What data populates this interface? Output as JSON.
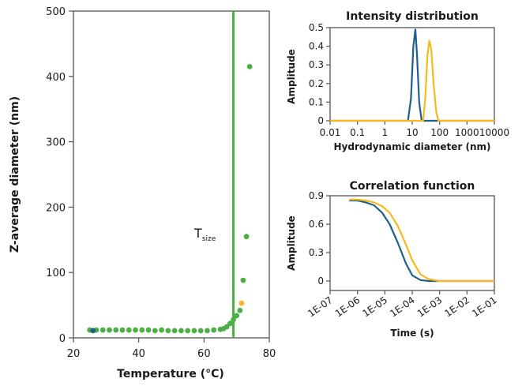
{
  "colors": {
    "green": "#4caf43",
    "blue": "#1f5f8b",
    "yellow": "#f8b91f",
    "axis": "#555555"
  },
  "chart_data": [
    {
      "id": "main",
      "type": "scatter",
      "xlabel": "Temperature (°C)",
      "ylabel": "Z-average diameter (nm)",
      "xlim": [
        20,
        80
      ],
      "ylim": [
        0,
        500
      ],
      "xticks": [
        "20",
        "40",
        "60",
        "80"
      ],
      "yticks": [
        "0",
        "100",
        "200",
        "300",
        "400",
        "500"
      ],
      "annotation": {
        "label": "T",
        "subscript": "size",
        "x_value": 69
      },
      "series": [
        {
          "color": "green",
          "points": [
            [
              25,
              12
            ],
            [
              27,
              12
            ],
            [
              29,
              12
            ],
            [
              31,
              12
            ],
            [
              33,
              12
            ],
            [
              35,
              12
            ],
            [
              37,
              12
            ],
            [
              39,
              12
            ],
            [
              41,
              12
            ],
            [
              43,
              12
            ],
            [
              45,
              11
            ],
            [
              47,
              12
            ],
            [
              49,
              11
            ],
            [
              51,
              11
            ],
            [
              53,
              11
            ],
            [
              55,
              11
            ],
            [
              57,
              11
            ],
            [
              59,
              11
            ],
            [
              61,
              11
            ],
            [
              63,
              12
            ],
            [
              65,
              13
            ],
            [
              66,
              14
            ],
            [
              67,
              17
            ],
            [
              68,
              22
            ],
            [
              69,
              28
            ],
            [
              70,
              34
            ],
            [
              71,
              42
            ],
            [
              72,
              88
            ],
            [
              73,
              155
            ],
            [
              74,
              415
            ]
          ]
        },
        {
          "color": "blue",
          "points": [
            [
              26,
              11
            ]
          ]
        },
        {
          "color": "yellow",
          "points": [
            [
              71.5,
              53
            ]
          ]
        }
      ]
    },
    {
      "id": "intensity",
      "type": "line",
      "title": "Intensity distribution",
      "xlabel": "Hydrodynamic diameter (nm)",
      "ylabel": "Amplitude",
      "x_scale": "log",
      "xlim": [
        0.01,
        10000
      ],
      "ylim": [
        0,
        0.5
      ],
      "xticks": [
        "0.01",
        "0.1",
        "1",
        "10",
        "100",
        "1000",
        "10000"
      ],
      "yticks": [
        "0",
        "0.1",
        "0.2",
        "0.3",
        "0.4",
        "0.5"
      ],
      "series": [
        {
          "color": "blue",
          "x": [
            0.01,
            7,
            9,
            11,
            13,
            15,
            18,
            22,
            10000
          ],
          "y": [
            0,
            0,
            0.12,
            0.4,
            0.49,
            0.35,
            0.1,
            0,
            0
          ]
        },
        {
          "color": "yellow",
          "x": [
            0.01,
            25,
            30,
            36,
            42,
            50,
            60,
            75,
            90,
            10000
          ],
          "y": [
            0,
            0,
            0.12,
            0.35,
            0.43,
            0.38,
            0.2,
            0.05,
            0,
            0
          ]
        }
      ]
    },
    {
      "id": "correlation",
      "type": "line",
      "title": "Correlation function",
      "xlabel": "Time (s)",
      "ylabel": "Amplitude",
      "x_scale": "log",
      "xlim": [
        1e-07,
        0.1
      ],
      "ylim": [
        -0.1,
        0.9
      ],
      "xticks": [
        "1E-07",
        "1E-06",
        "1E-05",
        "1E-04",
        "1E-03",
        "1E-02",
        "1E-01"
      ],
      "yticks": [
        "0",
        "0.3",
        "0.6",
        "0.9"
      ],
      "series": [
        {
          "color": "blue",
          "x": [
            5e-07,
            1e-06,
            2e-06,
            4e-06,
            8e-06,
            1.5e-05,
            3e-05,
            6e-05,
            0.0001,
            0.0002,
            0.0004,
            0.001,
            0.01,
            0.1
          ],
          "y": [
            0.85,
            0.85,
            0.83,
            0.8,
            0.72,
            0.6,
            0.4,
            0.18,
            0.06,
            0.01,
            0.0,
            0.0,
            0.0,
            0.0
          ]
        },
        {
          "color": "yellow",
          "x": [
            5e-07,
            1e-06,
            2e-06,
            4e-06,
            8e-06,
            1.5e-05,
            3e-05,
            6e-05,
            0.0001,
            0.0002,
            0.0004,
            0.001,
            0.01,
            0.1
          ],
          "y": [
            0.86,
            0.86,
            0.85,
            0.83,
            0.79,
            0.72,
            0.58,
            0.38,
            0.22,
            0.07,
            0.02,
            0.0,
            0.0,
            0.0
          ]
        }
      ]
    }
  ]
}
